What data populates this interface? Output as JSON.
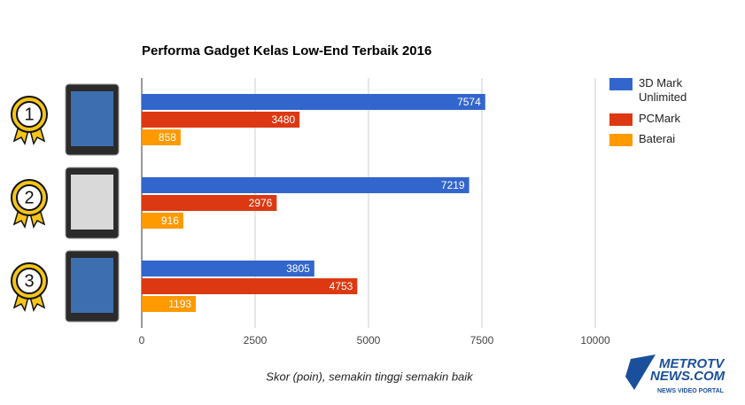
{
  "chart_data": {
    "type": "hbar",
    "title": "Performa Gadget Kelas Low-End Terbaik 2016",
    "x_label": "Skor (poin), semakin tinggi semakin baik",
    "categories": [
      "1",
      "2",
      "3"
    ],
    "series": [
      {
        "name": "3D Mark Unlimited",
        "color": "#3366cc",
        "values": [
          7574,
          7219,
          3805
        ]
      },
      {
        "name": "PCMark",
        "color": "#dc3912",
        "values": [
          3480,
          2976,
          4753
        ]
      },
      {
        "name": "Baterai",
        "color": "#ff9900",
        "values": [
          858,
          916,
          1193
        ]
      }
    ],
    "xlim": [
      0,
      10000
    ],
    "xticks": [
      0,
      2500,
      5000,
      7500,
      10000
    ],
    "grid": true,
    "legend": "right",
    "logo": {
      "brand": "METROTV",
      "site": "NEWS.COM",
      "tagline": "NEWS VIDEO PORTAL"
    }
  }
}
